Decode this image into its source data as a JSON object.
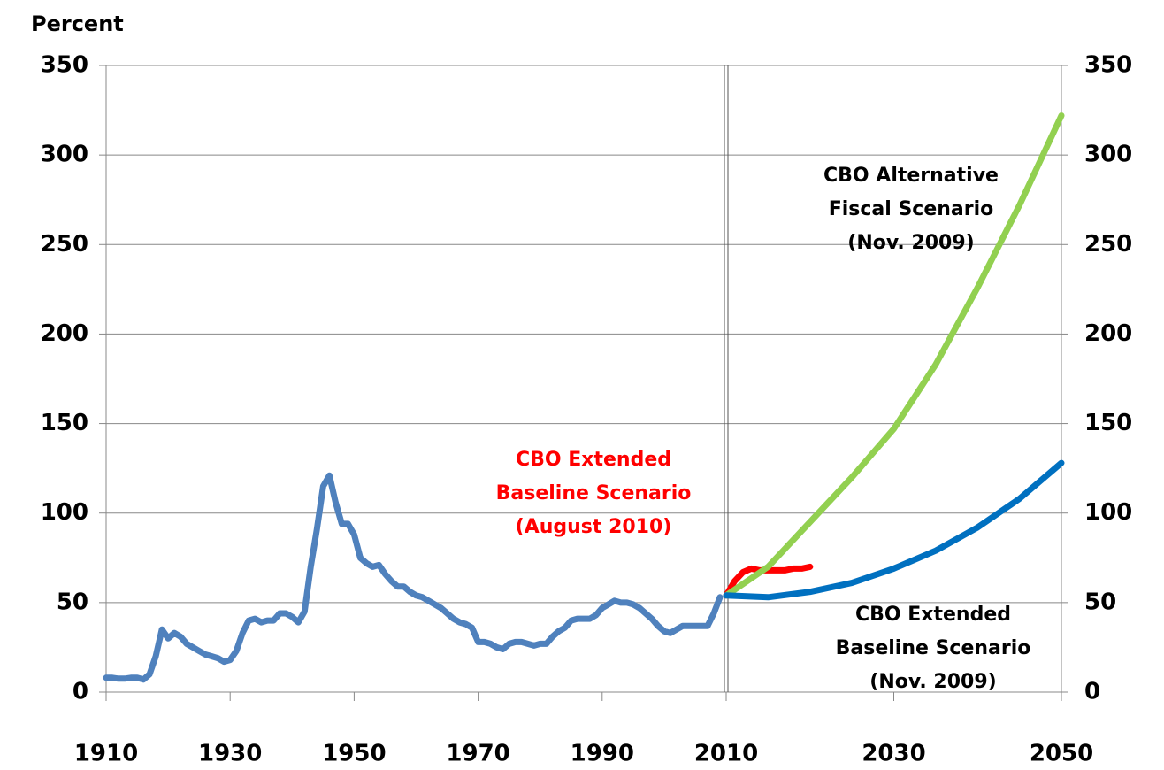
{
  "chart_data": {
    "type": "line",
    "y_axis_label": "Percent",
    "xlim": [
      1910,
      2050
    ],
    "x_break": 2010,
    "xticks": [
      1910,
      1930,
      1950,
      1970,
      1990,
      2010,
      2030,
      2050
    ],
    "ylim": [
      0,
      350
    ],
    "yticks": [
      0,
      50,
      100,
      150,
      200,
      250,
      300,
      350
    ],
    "y2lim": [
      0,
      350
    ],
    "y2ticks": [
      0,
      50,
      100,
      150,
      200,
      250,
      300,
      350
    ],
    "grid": true,
    "series": [
      {
        "color": "#4f81bd",
        "x": [
          1910,
          1911,
          1912,
          1913,
          1914,
          1915,
          1916,
          1917,
          1918,
          1919,
          1920,
          1921,
          1922,
          1923,
          1924,
          1925,
          1926,
          1927,
          1928,
          1929,
          1930,
          1931,
          1932,
          1933,
          1934,
          1935,
          1936,
          1937,
          1938,
          1939,
          1940,
          1941,
          1942,
          1943,
          1944,
          1945,
          1946,
          1947,
          1948,
          1949,
          1950,
          1951,
          1952,
          1953,
          1954,
          1955,
          1956,
          1957,
          1958,
          1959,
          1960,
          1961,
          1962,
          1963,
          1964,
          1965,
          1966,
          1967,
          1968,
          1969,
          1970,
          1971,
          1972,
          1973,
          1974,
          1975,
          1976,
          1977,
          1978,
          1979,
          1980,
          1981,
          1982,
          1983,
          1984,
          1985,
          1986,
          1987,
          1988,
          1989,
          1990,
          1991,
          1992,
          1993,
          1994,
          1995,
          1996,
          1997,
          1998,
          1999,
          2000,
          2001,
          2002,
          2003,
          2004,
          2005,
          2006,
          2007,
          2008,
          2009
        ],
        "values": [
          8,
          8,
          7.5,
          7.5,
          8,
          8,
          7,
          10,
          20,
          35,
          30,
          33,
          31,
          27,
          25,
          23,
          21,
          20,
          19,
          17,
          18,
          23,
          33,
          40,
          41,
          39,
          40,
          40,
          44,
          44,
          42,
          39,
          45,
          70,
          91,
          115,
          121,
          106,
          94,
          94,
          88,
          75,
          72,
          70,
          71,
          66,
          62,
          59,
          59,
          56,
          54,
          53,
          51,
          49,
          47,
          44,
          41,
          39,
          38,
          36,
          28,
          28,
          27,
          25,
          24,
          27,
          28,
          28,
          27,
          26,
          27,
          27,
          31,
          34,
          36,
          40,
          41,
          41,
          41,
          43,
          47,
          49,
          51,
          50,
          50,
          49,
          47,
          44,
          41,
          37,
          34,
          33,
          35,
          37,
          37,
          37,
          37,
          37,
          44,
          53
        ]
      },
      {
        "color": "#ff0000",
        "x": [
          2010,
          2011,
          2012,
          2013,
          2014,
          2015,
          2016,
          2017,
          2018,
          2019,
          2020
        ],
        "values": [
          54,
          62,
          67,
          69,
          68,
          68,
          68,
          68,
          69,
          69,
          70
        ]
      },
      {
        "color": "#92d050",
        "x": [
          2010,
          2015,
          2020,
          2025,
          2030,
          2035,
          2040,
          2045,
          2050
        ],
        "values": [
          54,
          70,
          95,
          120,
          147,
          183,
          226,
          272,
          322
        ]
      },
      {
        "color": "#0070c0",
        "x": [
          2010,
          2015,
          2020,
          2025,
          2030,
          2035,
          2040,
          2045,
          2050
        ],
        "values": [
          54,
          53,
          56,
          61,
          69,
          79,
          92,
          108,
          128
        ]
      }
    ],
    "annotations": [
      {
        "color": "#000000",
        "lines": [
          "CBO Alternative",
          "Fiscal Scenario",
          "(Nov. 2009)"
        ]
      },
      {
        "color": "#ff0000",
        "lines": [
          "CBO Extended",
          "Baseline Scenario",
          "(August 2010)"
        ]
      },
      {
        "color": "#000000",
        "lines": [
          "CBO Extended",
          "Baseline Scenario",
          "(Nov. 2009)"
        ]
      }
    ]
  }
}
